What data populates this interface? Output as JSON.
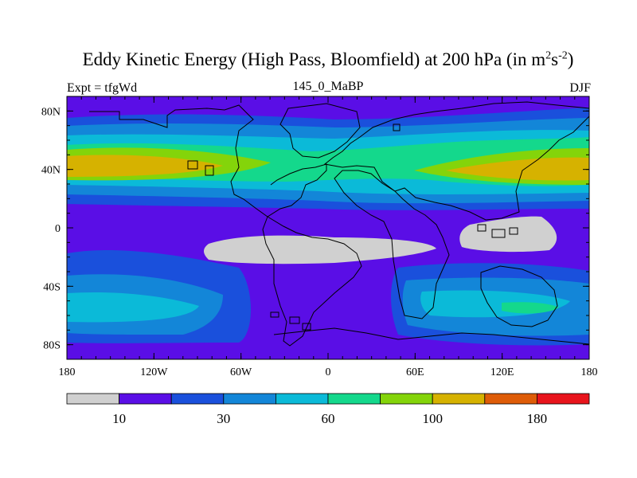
{
  "title": {
    "main": "Eddy Kinetic Energy (High Pass, Bloomfield) at 200 hPa (in m",
    "sup1": "2",
    "mid": "s",
    "sup2": "-2",
    "end": ")"
  },
  "subtitle": "145_0_MaBP",
  "left_label": "Expt = tfgWd",
  "right_label": "DJF",
  "map": {
    "lon_range": [
      -180,
      180
    ],
    "lat_range": [
      -90,
      90
    ],
    "lat_ticks": [
      {
        "lat": 80,
        "label": "80N"
      },
      {
        "lat": 40,
        "label": "40N"
      },
      {
        "lat": 0,
        "label": "0"
      },
      {
        "lat": -40,
        "label": "40S"
      },
      {
        "lat": -80,
        "label": "80S"
      }
    ],
    "lon_ticks": [
      {
        "lon": -180,
        "label": "180"
      },
      {
        "lon": -120,
        "label": "120W"
      },
      {
        "lon": -60,
        "label": "60W"
      },
      {
        "lon": 0,
        "label": "0"
      },
      {
        "lon": 60,
        "label": "60E"
      },
      {
        "lon": 120,
        "label": "120E"
      },
      {
        "lon": 180,
        "label": "180"
      }
    ]
  },
  "colorbar": {
    "colors": [
      "#d0d0d0",
      "#5a0ee6",
      "#1a50dc",
      "#1386d8",
      "#0bbad8",
      "#14d88c",
      "#84d40a",
      "#d6b200",
      "#de5c08",
      "#e8141c"
    ],
    "labels": [
      {
        "boundary": 1,
        "text": "10"
      },
      {
        "boundary": 3,
        "text": "30"
      },
      {
        "boundary": 5,
        "text": "60"
      },
      {
        "boundary": 7,
        "text": "100"
      },
      {
        "boundary": 9,
        "text": "180"
      }
    ]
  }
}
